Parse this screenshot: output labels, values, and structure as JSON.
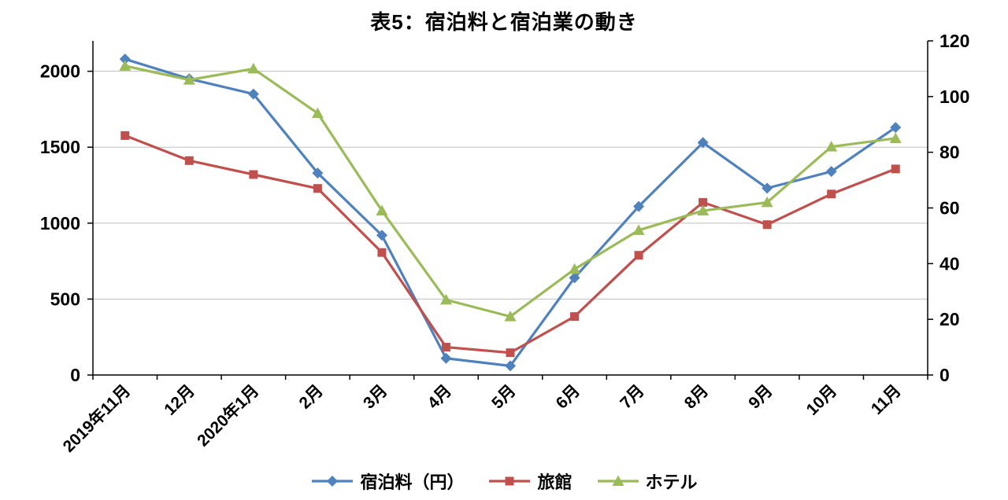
{
  "chart_data": {
    "type": "line",
    "title": "表5：宿泊料と宿泊業の動き",
    "categories": [
      "2019年11月",
      "12月",
      "2020年1月",
      "2月",
      "3月",
      "4月",
      "5月",
      "6月",
      "7月",
      "8月",
      "9月",
      "10月",
      "11月"
    ],
    "series": [
      {
        "name": "宿泊料（円）",
        "axis": "left",
        "color": "#4F81BD",
        "marker": "diamond",
        "values": [
          2080,
          1950,
          1850,
          1330,
          920,
          110,
          60,
          640,
          1110,
          1530,
          1230,
          1340,
          1630
        ]
      },
      {
        "name": "旅館",
        "axis": "right",
        "color": "#C0504D",
        "marker": "square",
        "values": [
          86,
          77,
          72,
          67,
          44,
          10,
          8,
          21,
          43,
          62,
          54,
          65,
          74
        ]
      },
      {
        "name": "ホテル",
        "axis": "right",
        "color": "#9BBB59",
        "marker": "triangle",
        "values": [
          111,
          106,
          110,
          94,
          59,
          27,
          21,
          38,
          52,
          59,
          62,
          82,
          85
        ]
      }
    ],
    "axes": {
      "left": {
        "min": 0,
        "max": 2200,
        "ticks": [
          0,
          500,
          1000,
          1500,
          2000
        ]
      },
      "right": {
        "min": 0,
        "max": 120,
        "ticks": [
          0,
          20,
          40,
          60,
          80,
          100,
          120
        ]
      }
    },
    "grid": true,
    "gridline_color": "#BFBFBF",
    "axis_color": "#000000",
    "legend_position": "bottom"
  }
}
